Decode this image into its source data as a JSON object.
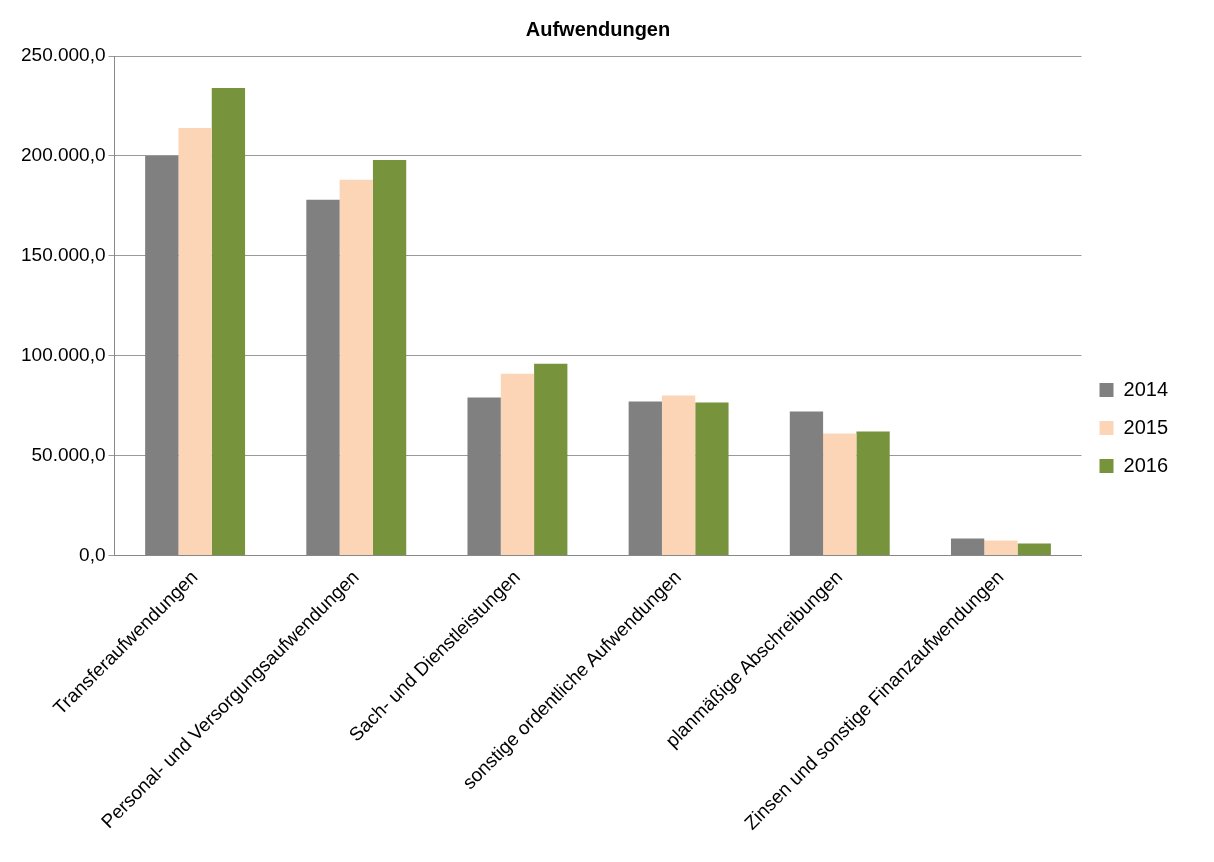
{
  "chart_data": {
    "type": "bar",
    "title": "Aufwendungen",
    "categories": [
      "Transferaufwendungen",
      "Personal- und Versorgungsaufwendungen",
      "Sach- und Dienstleistungen",
      "sonstige ordentliche Aufwendungen",
      "planmäßige Abschreibungen",
      "Zinsen und sonstige Finanzaufwendungen"
    ],
    "series": [
      {
        "name": "2014",
        "color": "#808080",
        "values": [
          200000,
          178000,
          79000,
          77000,
          72000,
          8500
        ]
      },
      {
        "name": "2015",
        "color": "#fbd5b5",
        "values": [
          214000,
          188000,
          91000,
          80000,
          61000,
          7500
        ]
      },
      {
        "name": "2016",
        "color": "#77933c",
        "values": [
          234000,
          198000,
          96000,
          76500,
          62000,
          6000
        ]
      }
    ],
    "ylim": [
      0,
      250000
    ],
    "yticks": [
      {
        "value": 0,
        "label": "0,0"
      },
      {
        "value": 50000,
        "label": "50.000,0"
      },
      {
        "value": 100000,
        "label": "100.000,0"
      },
      {
        "value": 150000,
        "label": "150.000,0"
      },
      {
        "value": 200000,
        "label": "200.000,0"
      },
      {
        "value": 250000,
        "label": "250.000,0"
      }
    ],
    "grid": "y",
    "legend": "right"
  }
}
